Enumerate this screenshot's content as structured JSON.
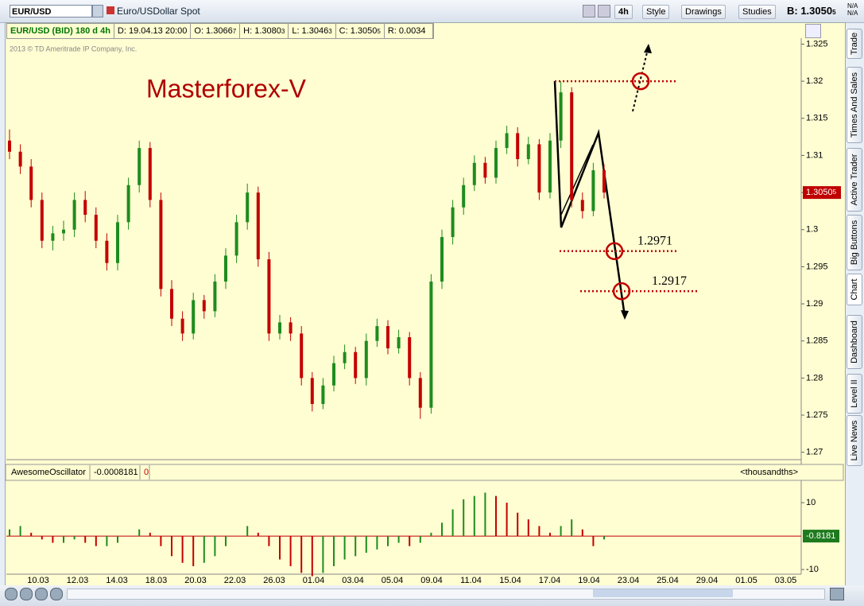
{
  "toolbar": {
    "symbol": "EUR/USD",
    "description": "Euro/USDollar Spot",
    "aggregation": "4h",
    "buttons": [
      "Style",
      "Drawings",
      "Studies"
    ],
    "bid": {
      "main": "B: 1.3050",
      "pip": "5"
    },
    "na": [
      "N/A",
      "N/A"
    ]
  },
  "info_bar": {
    "symbol": "EUR/USD (BID) 180 d 4h",
    "date": "D: 19.04.13 20:00",
    "open": {
      "main": "O: 1.3066",
      "pip": "7"
    },
    "high": {
      "main": "H: 1.3080",
      "pip": "3"
    },
    "low": {
      "main": "L: 1.3046",
      "pip": "3"
    },
    "close": {
      "main": "C: 1.3050",
      "pip": "5"
    },
    "range": "R: 0.0034"
  },
  "chart_data": [
    {
      "type": "candlestick",
      "copyright": "2013 © TD Ameritrade IP Company, Inc.",
      "title": "Masterforex-V",
      "ylim": [
        1.269,
        1.3258
      ],
      "yticks": [
        1.325,
        1.32,
        1.315,
        1.31,
        1.305,
        1.3,
        1.295,
        1.29,
        1.285,
        1.28,
        1.275,
        1.27
      ],
      "last_price": {
        "main": "1.3050",
        "pip": "5"
      },
      "breakout_level": 1.32,
      "target_levels": [
        1.2971,
        1.2917
      ],
      "up_color": "#1e8c1e",
      "down_color": "#c40000",
      "background": "#fffdd2",
      "open": [
        1.312,
        1.3105,
        1.3085,
        1.304,
        1.2985,
        1.2995,
        1.3,
        1.304,
        1.302,
        1.2985,
        1.2955,
        1.301,
        1.306,
        1.311,
        1.304,
        1.292,
        1.288,
        1.286,
        1.2905,
        1.289,
        1.293,
        1.2965,
        1.301,
        1.305,
        1.296,
        1.286,
        1.2875,
        1.286,
        1.28,
        1.2765,
        1.279,
        1.282,
        1.2835,
        1.28,
        1.285,
        1.287,
        1.284,
        1.2855,
        1.28,
        1.276,
        1.293,
        1.299,
        1.303,
        1.306,
        1.309,
        1.307,
        1.311,
        1.313,
        1.3095,
        1.3115,
        1.305,
        1.312,
        1.3185,
        1.304,
        1.3025,
        1.308
      ],
      "high": [
        1.3135,
        1.3115,
        1.3095,
        1.305,
        1.3005,
        1.3012,
        1.305,
        1.3052,
        1.303,
        1.2995,
        1.302,
        1.307,
        1.312,
        1.3118,
        1.305,
        1.2932,
        1.289,
        1.2915,
        1.2912,
        1.294,
        1.2975,
        1.302,
        1.3062,
        1.3058,
        1.297,
        1.2885,
        1.2882,
        1.287,
        1.2808,
        1.28,
        1.283,
        1.2845,
        1.2842,
        1.286,
        1.288,
        1.2878,
        1.2865,
        1.2862,
        1.2808,
        1.294,
        1.3,
        1.304,
        1.307,
        1.31,
        1.3098,
        1.312,
        1.314,
        1.3138,
        1.3125,
        1.3122,
        1.313,
        1.32,
        1.3192,
        1.305,
        1.309,
        1.3088
      ],
      "low": [
        1.3095,
        1.3075,
        1.303,
        1.2975,
        1.2972,
        1.2985,
        1.299,
        1.301,
        1.2975,
        1.2945,
        1.2945,
        1.3,
        1.305,
        1.303,
        1.291,
        1.287,
        1.285,
        1.2852,
        1.288,
        1.2882,
        1.292,
        1.2955,
        1.3,
        1.295,
        1.285,
        1.2852,
        1.285,
        1.279,
        1.2755,
        1.2758,
        1.2782,
        1.2812,
        1.2792,
        1.279,
        1.2842,
        1.2832,
        1.2833,
        1.279,
        1.2745,
        1.2752,
        1.292,
        1.298,
        1.302,
        1.3052,
        1.3062,
        1.3062,
        1.3102,
        1.3085,
        1.3088,
        1.304,
        1.3042,
        1.311,
        1.303,
        1.3015,
        1.3018,
        1.3042
      ],
      "close": [
        1.3105,
        1.3085,
        1.304,
        1.2985,
        1.2995,
        1.3,
        1.304,
        1.302,
        1.2985,
        1.2955,
        1.301,
        1.306,
        1.311,
        1.304,
        1.292,
        1.288,
        1.286,
        1.2905,
        1.289,
        1.293,
        1.2965,
        1.301,
        1.305,
        1.296,
        1.286,
        1.2875,
        1.286,
        1.28,
        1.2765,
        1.279,
        1.282,
        1.2835,
        1.28,
        1.285,
        1.287,
        1.284,
        1.2855,
        1.28,
        1.276,
        1.293,
        1.299,
        1.303,
        1.306,
        1.309,
        1.307,
        1.311,
        1.313,
        1.3095,
        1.3115,
        1.305,
        1.312,
        1.3185,
        1.304,
        1.3025,
        1.308,
        1.305
      ]
    },
    {
      "type": "histogram",
      "name": "AwesomeOscillator",
      "current": "-0.0008181",
      "offset": "0",
      "units": "<thousandths>",
      "ylim": [
        -11.4,
        16.2
      ],
      "yticks": [
        10,
        -10
      ],
      "last_value_label": "-0.8181",
      "up_color": "#1e8c1e",
      "down_color": "#c40000",
      "values": [
        2,
        3,
        1,
        -1,
        -2,
        -2,
        -1,
        -2,
        -3,
        -3,
        -2,
        0,
        2,
        1,
        -3,
        -6,
        -8,
        -9,
        -8,
        -6,
        -3,
        0,
        3,
        1,
        -3,
        -7,
        -9,
        -11,
        -12,
        -11,
        -9,
        -7,
        -6,
        -5,
        -4,
        -3,
        -2,
        -3,
        -2,
        1,
        4,
        8,
        11,
        12,
        13,
        12,
        10,
        7,
        5,
        3,
        1,
        3,
        5,
        2,
        -3,
        -1
      ]
    }
  ],
  "x_axis": {
    "categories": [
      "10.03",
      "12.03",
      "14.03",
      "18.03",
      "20.03",
      "22.03",
      "26.03",
      "01.04",
      "03.04",
      "05.04",
      "09.04",
      "11.04",
      "15.04",
      "17.04",
      "19.04",
      "23.04",
      "25.04",
      "29.04",
      "01.05",
      "03.05"
    ]
  },
  "sidebar": [
    "Trade",
    "Times And Sales",
    "Active Trader",
    "Big Buttons",
    "Chart",
    "Dashboard",
    "Level II",
    "Live News"
  ]
}
